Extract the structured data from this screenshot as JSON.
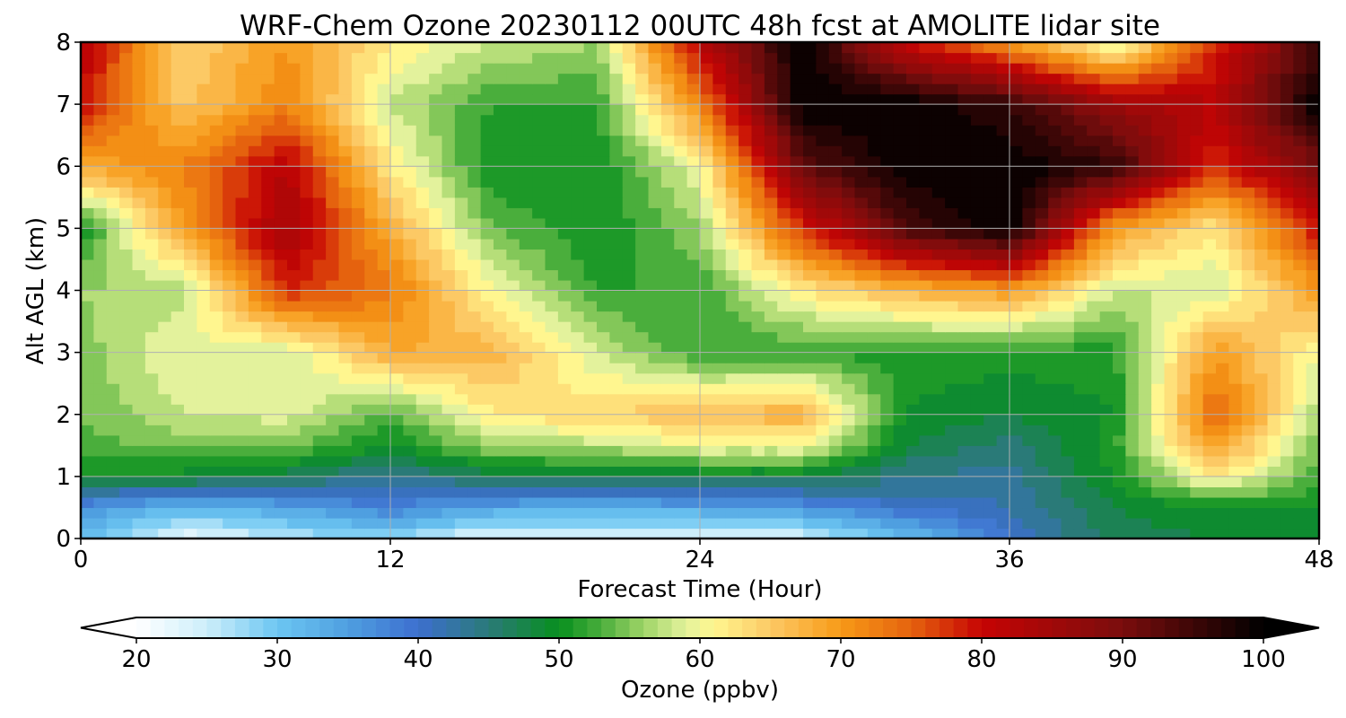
{
  "chart_data": {
    "type": "heatmap",
    "title": "WRF-Chem Ozone  20230112 00UTC 48h fcst at AMOLITE lidar site",
    "xlabel": "Forecast Time (Hour)",
    "ylabel": "Alt AGL (km)",
    "xlim": [
      0,
      48
    ],
    "ylim": [
      0,
      8
    ],
    "xticks": [
      0,
      12,
      24,
      36,
      48
    ],
    "yticks": [
      0,
      1,
      2,
      3,
      4,
      5,
      6,
      7,
      8
    ],
    "grid": true,
    "x": [
      0,
      4,
      8,
      12,
      16,
      20,
      24,
      28,
      32,
      36,
      40,
      44,
      48
    ],
    "y": [
      0,
      0.5,
      1,
      1.5,
      2,
      3,
      4,
      5,
      6,
      7,
      8
    ],
    "z": [
      [
        31,
        22,
        26,
        28,
        22,
        23,
        22,
        24,
        31,
        40,
        47,
        48,
        49
      ],
      [
        36,
        32,
        34,
        38,
        34,
        33,
        34,
        36,
        40,
        42,
        48,
        50,
        50
      ],
      [
        50,
        49,
        47,
        43,
        47,
        48,
        48,
        48,
        44,
        43,
        50,
        62,
        53
      ],
      [
        53,
        55,
        54,
        50,
        56,
        57,
        60,
        60,
        48,
        45,
        51,
        70,
        54
      ],
      [
        54,
        58,
        59,
        53,
        62,
        64,
        66,
        68,
        50,
        48,
        50,
        75,
        56
      ],
      [
        55,
        60,
        58,
        68,
        67,
        58,
        52,
        52,
        51,
        51,
        51,
        70,
        60
      ],
      [
        56,
        57,
        78,
        73,
        60,
        52,
        52,
        62,
        67,
        70,
        58,
        58,
        70
      ],
      [
        50,
        70,
        85,
        68,
        54,
        50,
        56,
        78,
        94,
        100,
        70,
        62,
        80
      ],
      [
        68,
        72,
        82,
        62,
        50,
        50,
        60,
        92,
        100,
        100,
        96,
        78,
        90
      ],
      [
        80,
        65,
        72,
        58,
        52,
        52,
        72,
        100,
        100,
        96,
        86,
        82,
        100
      ],
      [
        82,
        64,
        70,
        62,
        58,
        56,
        82,
        100,
        80,
        70,
        58,
        78,
        95
      ]
    ],
    "colorbar": {
      "label": "Ozone  (ppbv)",
      "min": 20,
      "max": 100,
      "ticks": [
        20,
        30,
        40,
        50,
        60,
        70,
        80,
        90,
        100
      ],
      "extend": "both",
      "stops": [
        {
          "v": 20,
          "c": "#ffffff"
        },
        {
          "v": 25,
          "c": "#cdeefa"
        },
        {
          "v": 30,
          "c": "#6cc6f2"
        },
        {
          "v": 35,
          "c": "#4f9fe0"
        },
        {
          "v": 40,
          "c": "#3d6fcf"
        },
        {
          "v": 45,
          "c": "#2a7a78"
        },
        {
          "v": 50,
          "c": "#078f1e"
        },
        {
          "v": 53,
          "c": "#4aae3c"
        },
        {
          "v": 56,
          "c": "#9fd467"
        },
        {
          "v": 59,
          "c": "#e3f29c"
        },
        {
          "v": 61,
          "c": "#fff68f"
        },
        {
          "v": 65,
          "c": "#fcc965"
        },
        {
          "v": 70,
          "c": "#f79a17"
        },
        {
          "v": 75,
          "c": "#e5620e"
        },
        {
          "v": 80,
          "c": "#c60404"
        },
        {
          "v": 90,
          "c": "#7a0d0d"
        },
        {
          "v": 100,
          "c": "#000000"
        }
      ]
    }
  }
}
